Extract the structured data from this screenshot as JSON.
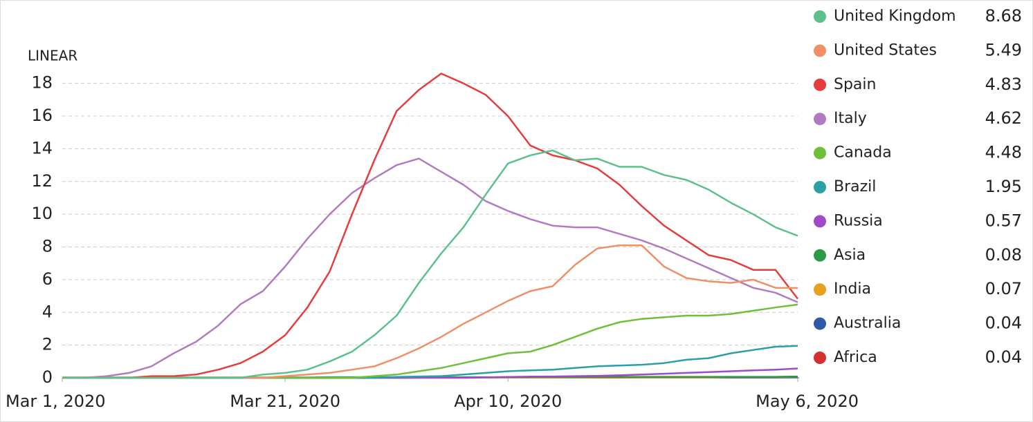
{
  "chart_data": {
    "type": "line",
    "scale_label": "LINEAR",
    "log_scale": false,
    "grid": true,
    "x": [
      "Mar 1, 2020",
      "Mar 3, 2020",
      "Mar 5, 2020",
      "Mar 7, 2020",
      "Mar 9, 2020",
      "Mar 11, 2020",
      "Mar 13, 2020",
      "Mar 15, 2020",
      "Mar 17, 2020",
      "Mar 19, 2020",
      "Mar 21, 2020",
      "Mar 23, 2020",
      "Mar 25, 2020",
      "Mar 27, 2020",
      "Mar 29, 2020",
      "Mar 31, 2020",
      "Apr 2, 2020",
      "Apr 4, 2020",
      "Apr 6, 2020",
      "Apr 8, 2020",
      "Apr 10, 2020",
      "Apr 12, 2020",
      "Apr 14, 2020",
      "Apr 16, 2020",
      "Apr 18, 2020",
      "Apr 20, 2020",
      "Apr 22, 2020",
      "Apr 24, 2020",
      "Apr 26, 2020",
      "Apr 28, 2020",
      "Apr 30, 2020",
      "May 2, 2020",
      "May 4, 2020",
      "May 6, 2020"
    ],
    "xticks": [
      "Mar 1, 2020",
      "Mar 21, 2020",
      "Apr 10, 2020",
      "May 6, 2020"
    ],
    "ylim": [
      0,
      19
    ],
    "yticks": [
      0,
      2,
      4,
      6,
      8,
      10,
      12,
      14,
      16,
      18
    ],
    "series": [
      {
        "name": "United Kingdom",
        "color": "#5cbf8c",
        "latest": 8.68,
        "values": [
          0,
          0,
          0,
          0,
          0,
          0,
          0,
          0,
          0,
          0.2,
          0.3,
          0.5,
          1,
          1.6,
          2.6,
          3.8,
          5.8,
          7.6,
          9.2,
          11.2,
          13.1,
          13.6,
          13.9,
          13.3,
          13.4,
          12.9,
          12.9,
          12.4,
          12.1,
          11.5,
          10.7,
          10,
          9.2,
          8.68
        ]
      },
      {
        "name": "United States",
        "color": "#f08f66",
        "latest": 5.49,
        "values": [
          0,
          0,
          0,
          0,
          0,
          0,
          0,
          0,
          0,
          0,
          0.1,
          0.2,
          0.3,
          0.5,
          0.7,
          1.2,
          1.8,
          2.5,
          3.3,
          4,
          4.7,
          5.3,
          5.6,
          6.9,
          7.9,
          8.1,
          8.1,
          6.8,
          6.1,
          5.9,
          5.8,
          6,
          5.5,
          5.49
        ]
      },
      {
        "name": "Spain",
        "color": "#e63c3c",
        "latest": 4.83,
        "values": [
          0,
          0,
          0,
          0,
          0.1,
          0.1,
          0.2,
          0.5,
          0.9,
          1.6,
          2.6,
          4.3,
          6.5,
          10,
          13.3,
          16.3,
          17.6,
          18.6,
          18,
          17.3,
          16,
          14.2,
          13.6,
          13.3,
          12.8,
          11.8,
          10.5,
          9.3,
          8.4,
          7.5,
          7.2,
          6.6,
          6.6,
          4.83
        ]
      },
      {
        "name": "Italy",
        "color": "#b07cbf",
        "latest": 4.62,
        "values": [
          0,
          0,
          0.1,
          0.3,
          0.7,
          1.5,
          2.2,
          3.2,
          4.5,
          5.3,
          6.8,
          8.5,
          10,
          11.3,
          12.2,
          13,
          13.4,
          12.6,
          11.8,
          10.8,
          10.2,
          9.7,
          9.3,
          9.2,
          9.2,
          8.8,
          8.4,
          7.9,
          7.3,
          6.7,
          6.1,
          5.5,
          5.2,
          4.62
        ]
      },
      {
        "name": "Canada",
        "color": "#6fbf3a",
        "latest": 4.48,
        "values": [
          0,
          0,
          0,
          0,
          0,
          0,
          0,
          0,
          0,
          0,
          0,
          0,
          0,
          0,
          0.1,
          0.2,
          0.4,
          0.6,
          0.9,
          1.2,
          1.5,
          1.6,
          2,
          2.5,
          3,
          3.4,
          3.6,
          3.7,
          3.8,
          3.8,
          3.9,
          4.1,
          4.3,
          4.48
        ]
      },
      {
        "name": "Brazil",
        "color": "#2c9ea5",
        "latest": 1.95,
        "values": [
          0,
          0,
          0,
          0,
          0,
          0,
          0,
          0,
          0,
          0,
          0,
          0,
          0,
          0,
          0,
          0.05,
          0.08,
          0.1,
          0.2,
          0.3,
          0.4,
          0.45,
          0.5,
          0.6,
          0.7,
          0.75,
          0.8,
          0.9,
          1.1,
          1.2,
          1.5,
          1.7,
          1.9,
          1.95
        ]
      },
      {
        "name": "Russia",
        "color": "#a04ac8",
        "latest": 0.57,
        "values": [
          0,
          0,
          0,
          0,
          0,
          0,
          0,
          0,
          0,
          0,
          0,
          0,
          0,
          0,
          0,
          0,
          0,
          0,
          0,
          0.02,
          0.05,
          0.07,
          0.08,
          0.1,
          0.12,
          0.15,
          0.2,
          0.25,
          0.3,
          0.35,
          0.4,
          0.45,
          0.5,
          0.57
        ]
      },
      {
        "name": "Asia",
        "color": "#2e9a48",
        "latest": 0.08,
        "values": [
          0.02,
          0.02,
          0.02,
          0.02,
          0.02,
          0.02,
          0.02,
          0.02,
          0.02,
          0.02,
          0.02,
          0.02,
          0.04,
          0.04,
          0.04,
          0.04,
          0.04,
          0.04,
          0.04,
          0.04,
          0.04,
          0.04,
          0.04,
          0.04,
          0.06,
          0.06,
          0.06,
          0.06,
          0.06,
          0.06,
          0.06,
          0.06,
          0.06,
          0.08
        ]
      },
      {
        "name": "India",
        "color": "#e8a020",
        "latest": 0.07,
        "values": [
          0,
          0,
          0,
          0,
          0,
          0,
          0,
          0,
          0,
          0,
          0,
          0,
          0,
          0,
          0,
          0,
          0.01,
          0.01,
          0.01,
          0.01,
          0.01,
          0.01,
          0.01,
          0.01,
          0.03,
          0.03,
          0.03,
          0.03,
          0.03,
          0.03,
          0.05,
          0.05,
          0.05,
          0.07
        ]
      },
      {
        "name": "Australia",
        "color": "#2f5aa8",
        "latest": 0.04,
        "values": [
          0,
          0,
          0,
          0,
          0,
          0,
          0,
          0,
          0,
          0,
          0,
          0,
          0,
          0,
          0.02,
          0.02,
          0.02,
          0.02,
          0.02,
          0.02,
          0.02,
          0.02,
          0.02,
          0.02,
          0.03,
          0.03,
          0.03,
          0.03,
          0.03,
          0.03,
          0.03,
          0.03,
          0.03,
          0.04
        ]
      },
      {
        "name": "Africa",
        "color": "#d43030",
        "latest": 0.04,
        "values": [
          0,
          0,
          0,
          0,
          0,
          0,
          0,
          0,
          0,
          0,
          0,
          0,
          0,
          0,
          0,
          0,
          0.01,
          0.01,
          0.01,
          0.01,
          0.01,
          0.01,
          0.01,
          0.01,
          0.01,
          0.01,
          0.02,
          0.02,
          0.02,
          0.02,
          0.02,
          0.02,
          0.02,
          0.04
        ]
      }
    ]
  }
}
